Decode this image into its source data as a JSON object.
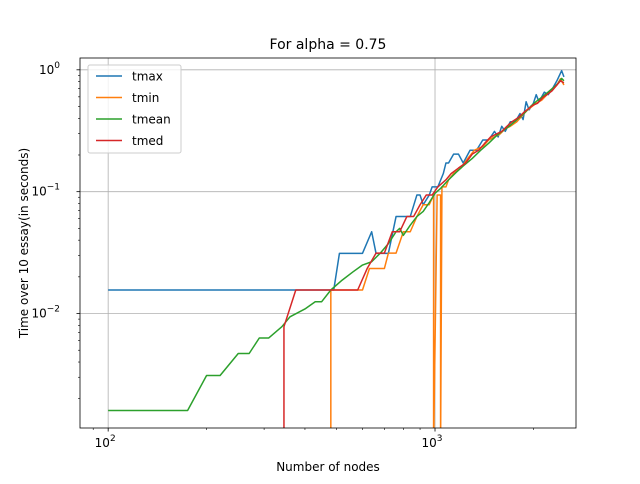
{
  "chart_data": {
    "type": "line",
    "title": "For alpha = 0.75",
    "xlabel": "Number of nodes",
    "ylabel": "Time over 10 essay(in seconds)",
    "xscale": "log",
    "yscale": "log",
    "xlim": [
      82,
      2700
    ],
    "ylim": [
      0.00115,
      1.25
    ],
    "grid": "on",
    "legend_position": "upper left",
    "x_major_ticks": [
      {
        "value": 100,
        "base": "10",
        "exp": "2"
      },
      {
        "value": 1000,
        "base": "10",
        "exp": "3"
      }
    ],
    "y_major_ticks": [
      {
        "value": 0.01,
        "base": "10",
        "exp": "−2"
      },
      {
        "value": 0.1,
        "base": "10",
        "exp": "−1"
      },
      {
        "value": 1,
        "base": "10",
        "exp": "0"
      }
    ],
    "series": [
      {
        "name": "tmax",
        "color": "#1f77b4",
        "points": [
          [
            100,
            0.0156
          ],
          [
            470,
            0.0156
          ],
          [
            490,
            0.0156
          ],
          [
            510,
            0.0312
          ],
          [
            600,
            0.0312
          ],
          [
            640,
            0.0469
          ],
          [
            660,
            0.0312
          ],
          [
            720,
            0.0312
          ],
          [
            760,
            0.0625
          ],
          [
            840,
            0.0625
          ],
          [
            880,
            0.0938
          ],
          [
            900,
            0.0938
          ],
          [
            920,
            0.0781
          ],
          [
            960,
            0.0938
          ],
          [
            980,
            0.1094
          ],
          [
            1020,
            0.1094
          ],
          [
            1060,
            0.1406
          ],
          [
            1080,
            0.1719
          ],
          [
            1100,
            0.1719
          ],
          [
            1140,
            0.2031
          ],
          [
            1180,
            0.2031
          ],
          [
            1220,
            0.1719
          ],
          [
            1280,
            0.2188
          ],
          [
            1340,
            0.2188
          ],
          [
            1400,
            0.2656
          ],
          [
            1460,
            0.2656
          ],
          [
            1520,
            0.3125
          ],
          [
            1560,
            0.2813
          ],
          [
            1600,
            0.3438
          ],
          [
            1640,
            0.3125
          ],
          [
            1700,
            0.375
          ],
          [
            1760,
            0.375
          ],
          [
            1820,
            0.4375
          ],
          [
            1860,
            0.3906
          ],
          [
            1900,
            0.5469
          ],
          [
            1940,
            0.4688
          ],
          [
            2000,
            0.5313
          ],
          [
            2040,
            0.625
          ],
          [
            2080,
            0.5469
          ],
          [
            2160,
            0.6563
          ],
          [
            2220,
            0.625
          ],
          [
            2300,
            0.7188
          ],
          [
            2360,
            0.8125
          ],
          [
            2440,
            0.9844
          ],
          [
            2480,
            0.875
          ]
        ]
      },
      {
        "name": "tmin",
        "color": "#ff7f0e",
        "points": [
          [
            480,
            0.0008
          ],
          [
            480,
            0.0156
          ],
          [
            580,
            0.0156
          ],
          [
            600,
            0.0156
          ],
          [
            630,
            0.0234
          ],
          [
            660,
            0.0234
          ],
          [
            700,
            0.0234
          ],
          [
            720,
            0.0313
          ],
          [
            760,
            0.0313
          ],
          [
            800,
            0.0469
          ],
          [
            840,
            0.0469
          ],
          [
            880,
            0.0625
          ],
          [
            920,
            0.0781
          ],
          [
            960,
            0.0781
          ],
          [
            990,
            0.0938
          ],
          [
            990,
            0.0008
          ],
          [
            1015,
            0.0938
          ],
          [
            1040,
            0.0938
          ],
          [
            1040,
            0.0008
          ],
          [
            1050,
            0.1094
          ],
          [
            1080,
            0.1094
          ],
          [
            1100,
            0.125
          ],
          [
            1140,
            0.1406
          ],
          [
            1200,
            0.1563
          ],
          [
            1260,
            0.1875
          ],
          [
            1320,
            0.2188
          ],
          [
            1400,
            0.2344
          ],
          [
            1460,
            0.2656
          ],
          [
            1520,
            0.2813
          ],
          [
            1580,
            0.2969
          ],
          [
            1640,
            0.3281
          ],
          [
            1700,
            0.3438
          ],
          [
            1780,
            0.375
          ],
          [
            1850,
            0.4219
          ],
          [
            1920,
            0.4688
          ],
          [
            1980,
            0.5
          ],
          [
            2040,
            0.5313
          ],
          [
            2120,
            0.5625
          ],
          [
            2200,
            0.625
          ],
          [
            2280,
            0.6875
          ],
          [
            2360,
            0.75
          ],
          [
            2420,
            0.8438
          ],
          [
            2480,
            0.75
          ]
        ]
      },
      {
        "name": "tmean",
        "color": "#2ca02c",
        "points": [
          [
            100,
            0.0016
          ],
          [
            175,
            0.0016
          ],
          [
            200,
            0.0031
          ],
          [
            220,
            0.0031
          ],
          [
            250,
            0.0047
          ],
          [
            270,
            0.0047
          ],
          [
            290,
            0.0063
          ],
          [
            310,
            0.0063
          ],
          [
            340,
            0.0078
          ],
          [
            360,
            0.0094
          ],
          [
            400,
            0.0109
          ],
          [
            430,
            0.0125
          ],
          [
            450,
            0.0125
          ],
          [
            480,
            0.0156
          ],
          [
            520,
            0.0188
          ],
          [
            560,
            0.0219
          ],
          [
            600,
            0.025
          ],
          [
            640,
            0.0266
          ],
          [
            680,
            0.0313
          ],
          [
            720,
            0.0375
          ],
          [
            760,
            0.0469
          ],
          [
            780,
            0.05
          ],
          [
            800,
            0.0438
          ],
          [
            840,
            0.0531
          ],
          [
            880,
            0.0625
          ],
          [
            920,
            0.0688
          ],
          [
            960,
            0.0813
          ],
          [
            1000,
            0.0969
          ],
          [
            1040,
            0.1063
          ],
          [
            1100,
            0.125
          ],
          [
            1160,
            0.1438
          ],
          [
            1220,
            0.1625
          ],
          [
            1300,
            0.1875
          ],
          [
            1380,
            0.2188
          ],
          [
            1460,
            0.25
          ],
          [
            1540,
            0.2875
          ],
          [
            1620,
            0.3188
          ],
          [
            1700,
            0.35
          ],
          [
            1800,
            0.4
          ],
          [
            1880,
            0.4438
          ],
          [
            1960,
            0.5
          ],
          [
            2040,
            0.55
          ],
          [
            2120,
            0.5938
          ],
          [
            2200,
            0.6438
          ],
          [
            2300,
            0.7125
          ],
          [
            2380,
            0.775
          ],
          [
            2440,
            0.85
          ],
          [
            2480,
            0.8125
          ]
        ]
      },
      {
        "name": "tmed",
        "color": "#d62728",
        "points": [
          [
            345,
            0.0008
          ],
          [
            345,
            0.0078
          ],
          [
            375,
            0.0156
          ],
          [
            400,
            0.0156
          ],
          [
            580,
            0.0156
          ],
          [
            620,
            0.0234
          ],
          [
            660,
            0.0313
          ],
          [
            700,
            0.0313
          ],
          [
            740,
            0.0469
          ],
          [
            780,
            0.0469
          ],
          [
            820,
            0.0625
          ],
          [
            860,
            0.0625
          ],
          [
            900,
            0.0781
          ],
          [
            940,
            0.0938
          ],
          [
            980,
            0.0938
          ],
          [
            1020,
            0.1094
          ],
          [
            1080,
            0.125
          ],
          [
            1120,
            0.1406
          ],
          [
            1180,
            0.1563
          ],
          [
            1240,
            0.1719
          ],
          [
            1300,
            0.2031
          ],
          [
            1360,
            0.2188
          ],
          [
            1420,
            0.25
          ],
          [
            1480,
            0.2813
          ],
          [
            1540,
            0.2969
          ],
          [
            1600,
            0.3125
          ],
          [
            1660,
            0.3438
          ],
          [
            1720,
            0.375
          ],
          [
            1800,
            0.4063
          ],
          [
            1880,
            0.4531
          ],
          [
            1940,
            0.4844
          ],
          [
            2000,
            0.5156
          ],
          [
            2060,
            0.5313
          ],
          [
            2140,
            0.5938
          ],
          [
            2200,
            0.625
          ],
          [
            2280,
            0.6719
          ],
          [
            2360,
            0.75
          ],
          [
            2420,
            0.8125
          ],
          [
            2480,
            0.7813
          ]
        ]
      }
    ]
  }
}
